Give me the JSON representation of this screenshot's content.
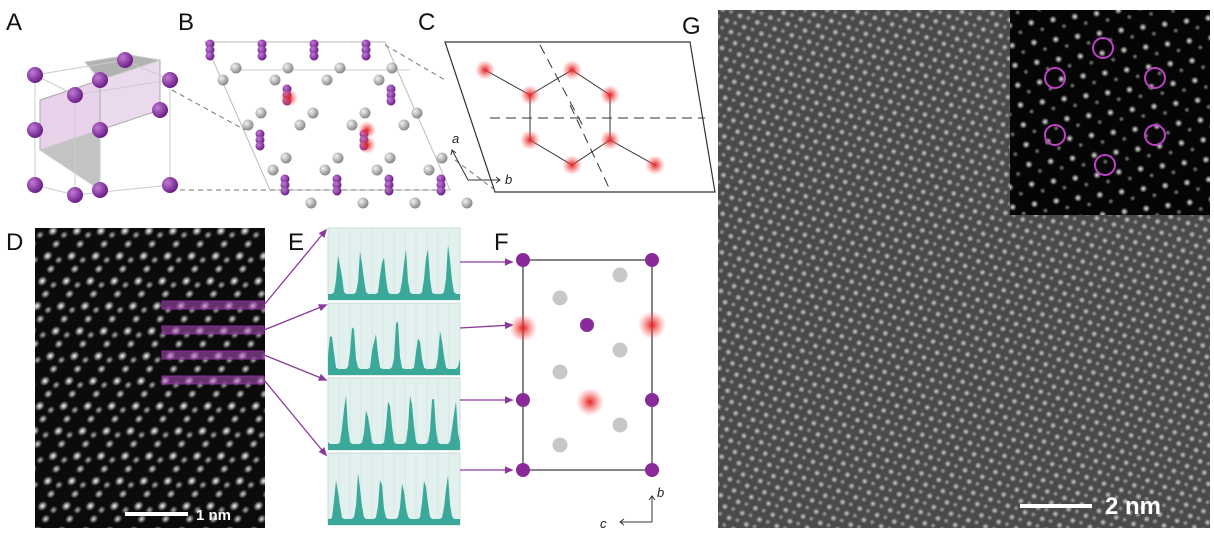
{
  "panels": [
    {
      "label": "A"
    },
    {
      "label": "B"
    },
    {
      "label": "C"
    },
    {
      "label": "D"
    },
    {
      "label": "E"
    },
    {
      "label": "F"
    },
    {
      "label": "G"
    }
  ],
  "axes": {
    "B": {
      "horizontal": "b",
      "vertical": "a"
    },
    "F": {
      "horizontal": "c",
      "vertical": "b"
    }
  },
  "scale_bars": {
    "D": "1 nm",
    "G": "2 nm"
  }
}
